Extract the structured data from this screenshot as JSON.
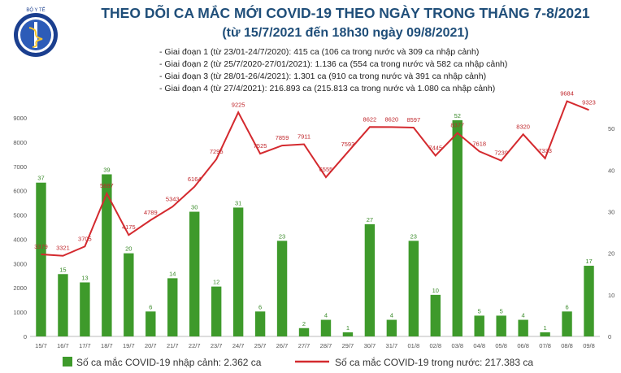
{
  "header": {
    "title": "THEO DÕI CA MẮC MỚI COVID-19 THEO NGÀY TRONG THÁNG 7-8/2021",
    "subtitle": "(từ 15/7/2021 đến 18h30 ngày 09/8/2021)",
    "notes": [
      "- Giai đoạn 1 (từ 23/01-24/7/2020): 415 ca (106 ca trong nước và 309 ca nhập cảnh)",
      "- Giai đoạn 2 (từ 25/7/2020-27/01/2021): 1.136 ca (554 ca trong nước và 582 ca nhập cảnh)",
      "- Giai đoạn 3 (từ 28/01-26/4/2021): 1.301 ca (910 ca trong nước và 391 ca nhập cảnh)",
      "- Giai đoạn 4 (từ 27/4/2021): 216.893 ca (215.813 ca trong nước và 1.080 ca nhập cảnh)"
    ],
    "logo_text": "BỘ Y TẾ"
  },
  "chart_data": {
    "type": "bar+line",
    "categories": [
      "15/7",
      "16/7",
      "17/7",
      "18/7",
      "19/7",
      "20/7",
      "21/7",
      "22/7",
      "23/7",
      "24/7",
      "25/7",
      "26/7",
      "27/7",
      "28/7",
      "29/7",
      "30/7",
      "31/7",
      "01/8",
      "02/8",
      "03/8",
      "04/8",
      "05/8",
      "06/8",
      "07/8",
      "08/8",
      "09/8"
    ],
    "series": [
      {
        "name": "Số ca mắc COVID-19 nhập cảnh: 2.362 ca",
        "type": "bar",
        "axis": "right",
        "values": [
          37,
          15,
          13,
          39,
          20,
          6,
          14,
          30,
          12,
          31,
          6,
          23,
          2,
          4,
          1,
          27,
          4,
          23,
          10,
          52,
          5,
          5,
          4,
          1,
          6,
          17
        ]
      },
      {
        "name": "Số ca mắc COVID-19 trong nước: 217.383 ca",
        "type": "line",
        "axis": "left",
        "values": [
          3379,
          3321,
          3705,
          5887,
          4175,
          4789,
          5343,
          6164,
          7295,
          9225,
          7525,
          7859,
          7911,
          6555,
          7593,
          8622,
          8620,
          8597,
          7445,
          8377,
          7618,
          7239,
          8320,
          7333,
          9684,
          9323
        ]
      }
    ],
    "y_left": {
      "min": 0,
      "max": 9000,
      "ticks": [
        0,
        1000,
        2000,
        3000,
        4000,
        5000,
        6000,
        7000,
        8000,
        9000
      ]
    },
    "y_right": {
      "min": 0,
      "max": 50,
      "ticks": [
        0,
        10,
        20,
        30,
        40,
        50
      ]
    },
    "colors": {
      "bar": "#3e9a2b",
      "line": "#d42a2f",
      "title": "#1f4e79"
    },
    "grid": false,
    "legend_position": "bottom"
  }
}
